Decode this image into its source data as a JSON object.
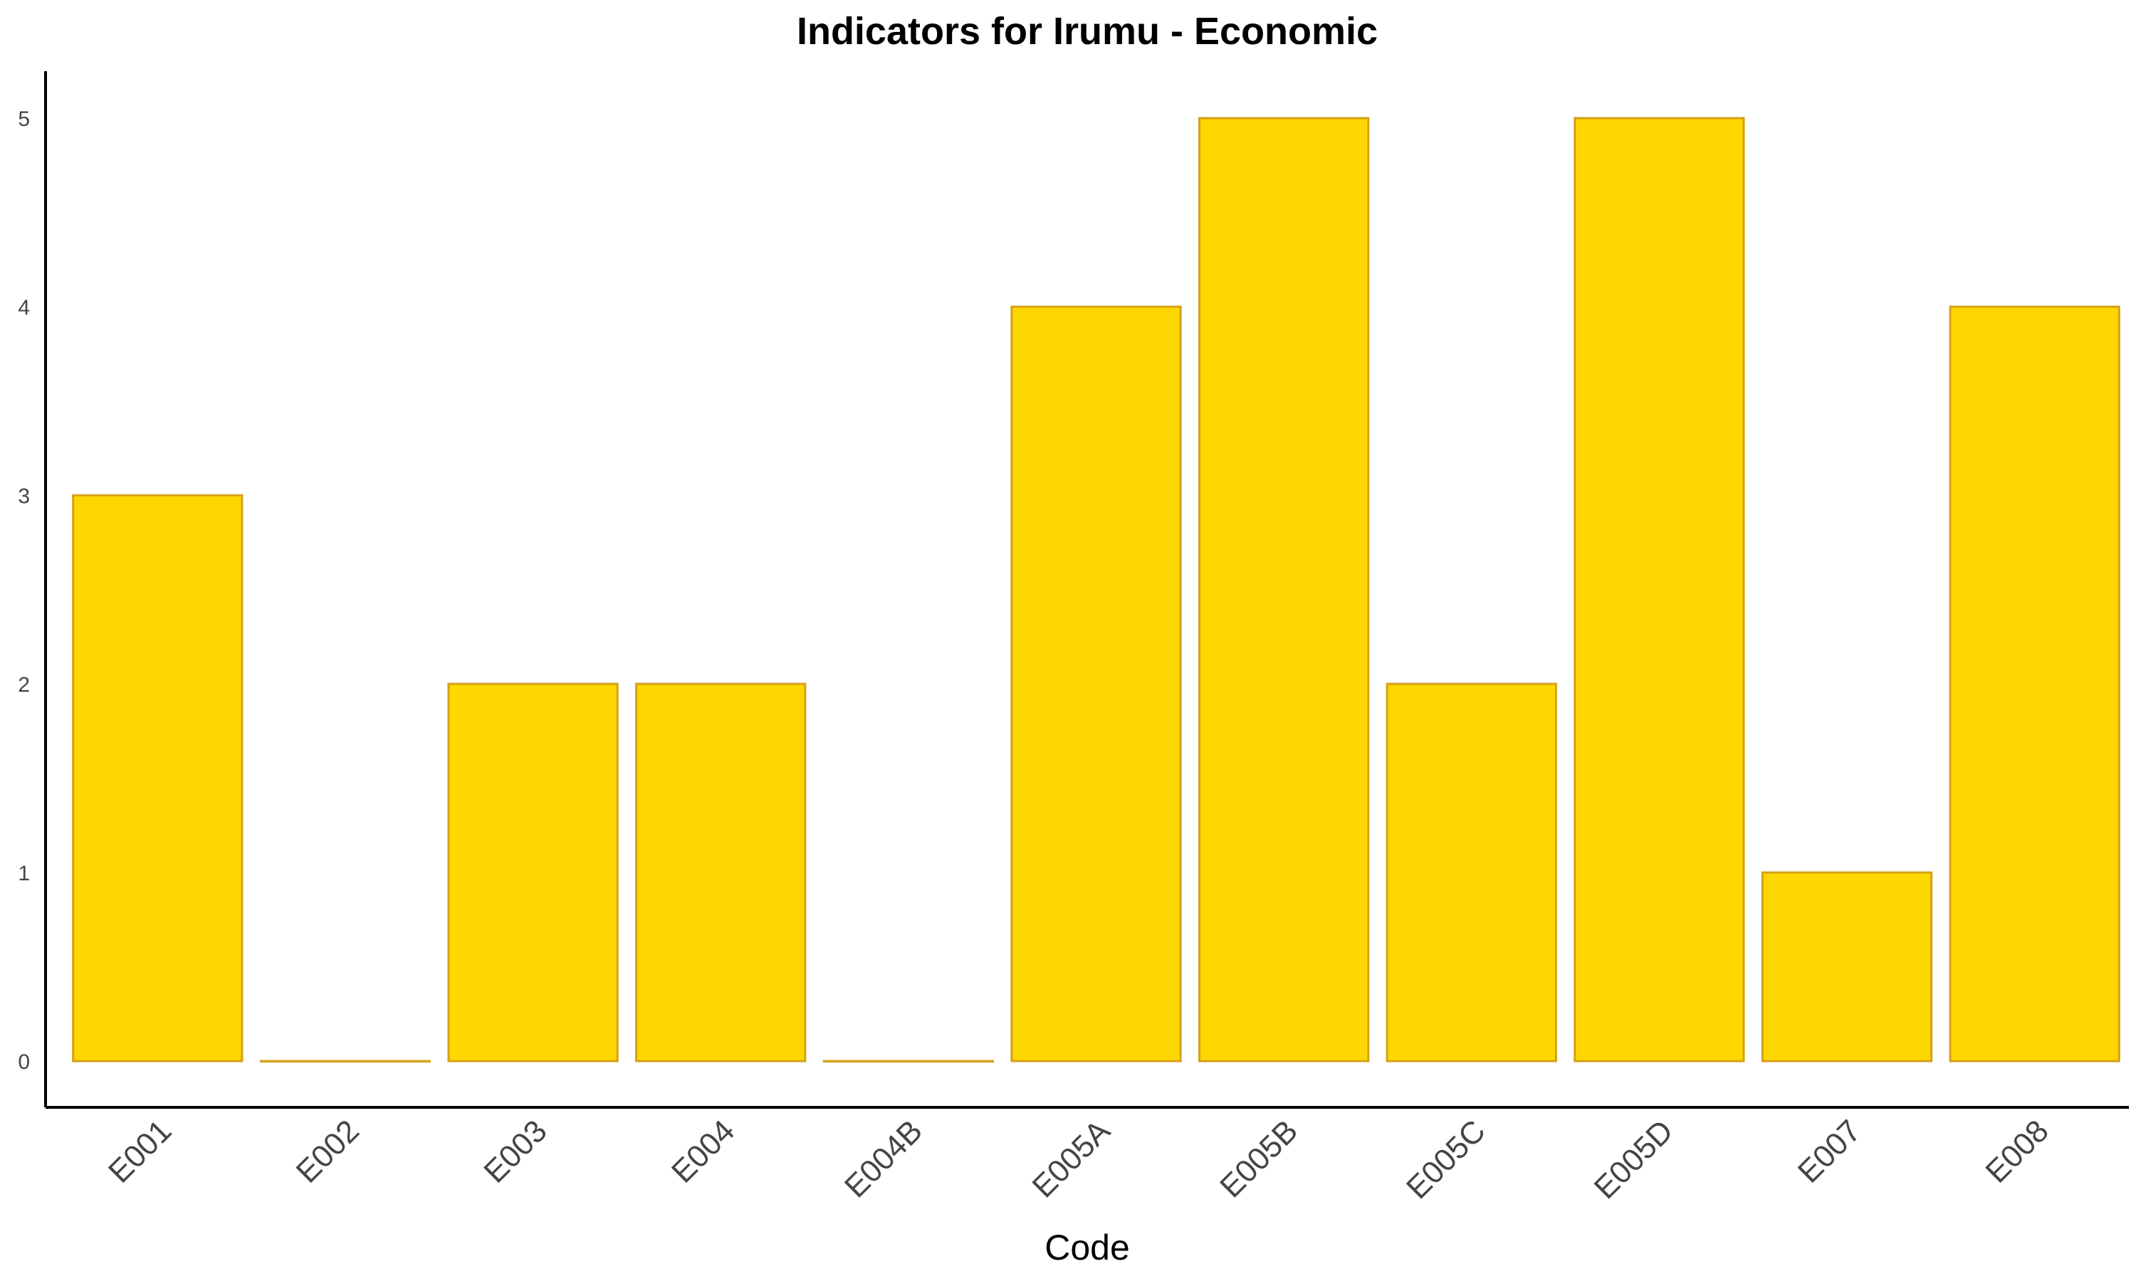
{
  "chart_data": {
    "type": "bar",
    "title": "Indicators for Irumu - Economic",
    "xlabel": "Code",
    "ylabel": "",
    "categories": [
      "E001",
      "E002",
      "E003",
      "E004",
      "E004B",
      "E005A",
      "E005B",
      "E005C",
      "E005D",
      "E007",
      "E008"
    ],
    "values": [
      3,
      0,
      2,
      2,
      0,
      4,
      5,
      2,
      5,
      1,
      4
    ],
    "ylim": [
      0,
      5.25
    ],
    "yticks": [
      0,
      1,
      2,
      3,
      4,
      5
    ],
    "grid": false,
    "legend": "none",
    "colors": {
      "bar_fill": "#FFD700",
      "bar_stroke": "#D4A017",
      "axis": "#000000"
    }
  }
}
